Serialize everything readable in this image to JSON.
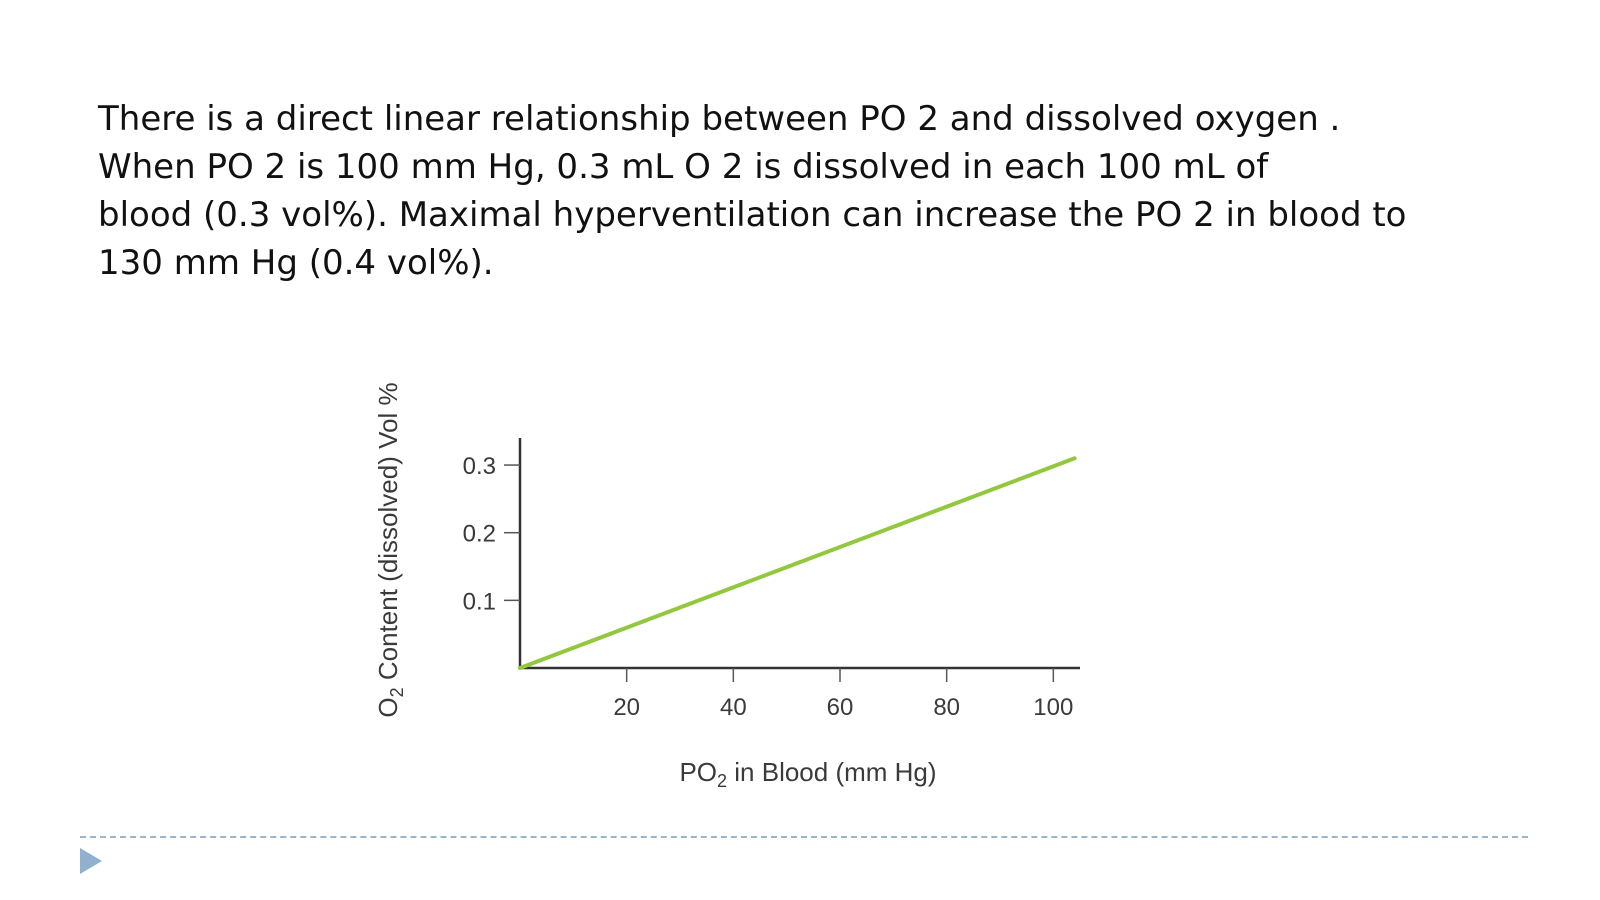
{
  "text": {
    "lines": [
      "There is a direct linear relationship between PO 2 and dissolved oxygen .",
      "When PO 2 is 100 mm Hg, 0.3 mL O 2 is dissolved in each 100 mL of",
      "blood (0.3 vol%). Maximal hyperventilation can increase the PO 2  in blood to",
      "130 mm Hg (0.4 vol%)."
    ]
  },
  "chart_data": {
    "type": "line",
    "title": "",
    "xlabel": {
      "prefix": "PO",
      "subscript": "2",
      "suffix": " in Blood (mm Hg)"
    },
    "ylabel": {
      "prefix": "O",
      "subscript": "2",
      "suffix": " Content (dissolved) Vol %"
    },
    "xlim": [
      0,
      105
    ],
    "ylim": [
      0,
      0.34
    ],
    "x_ticks": [
      20,
      40,
      60,
      80,
      100
    ],
    "x_tick_labels": [
      "20",
      "40",
      "60",
      "80",
      "100"
    ],
    "y_ticks": [
      0.1,
      0.2,
      0.3
    ],
    "y_tick_labels": [
      "0.1",
      "0.2",
      "0.3"
    ],
    "grid": false,
    "series": [
      {
        "color": "#92c83e",
        "x": [
          0,
          104
        ],
        "y": [
          0,
          0.31
        ]
      }
    ]
  },
  "colors": {
    "line": "#92c83e",
    "footer": "#8fb1cf"
  }
}
